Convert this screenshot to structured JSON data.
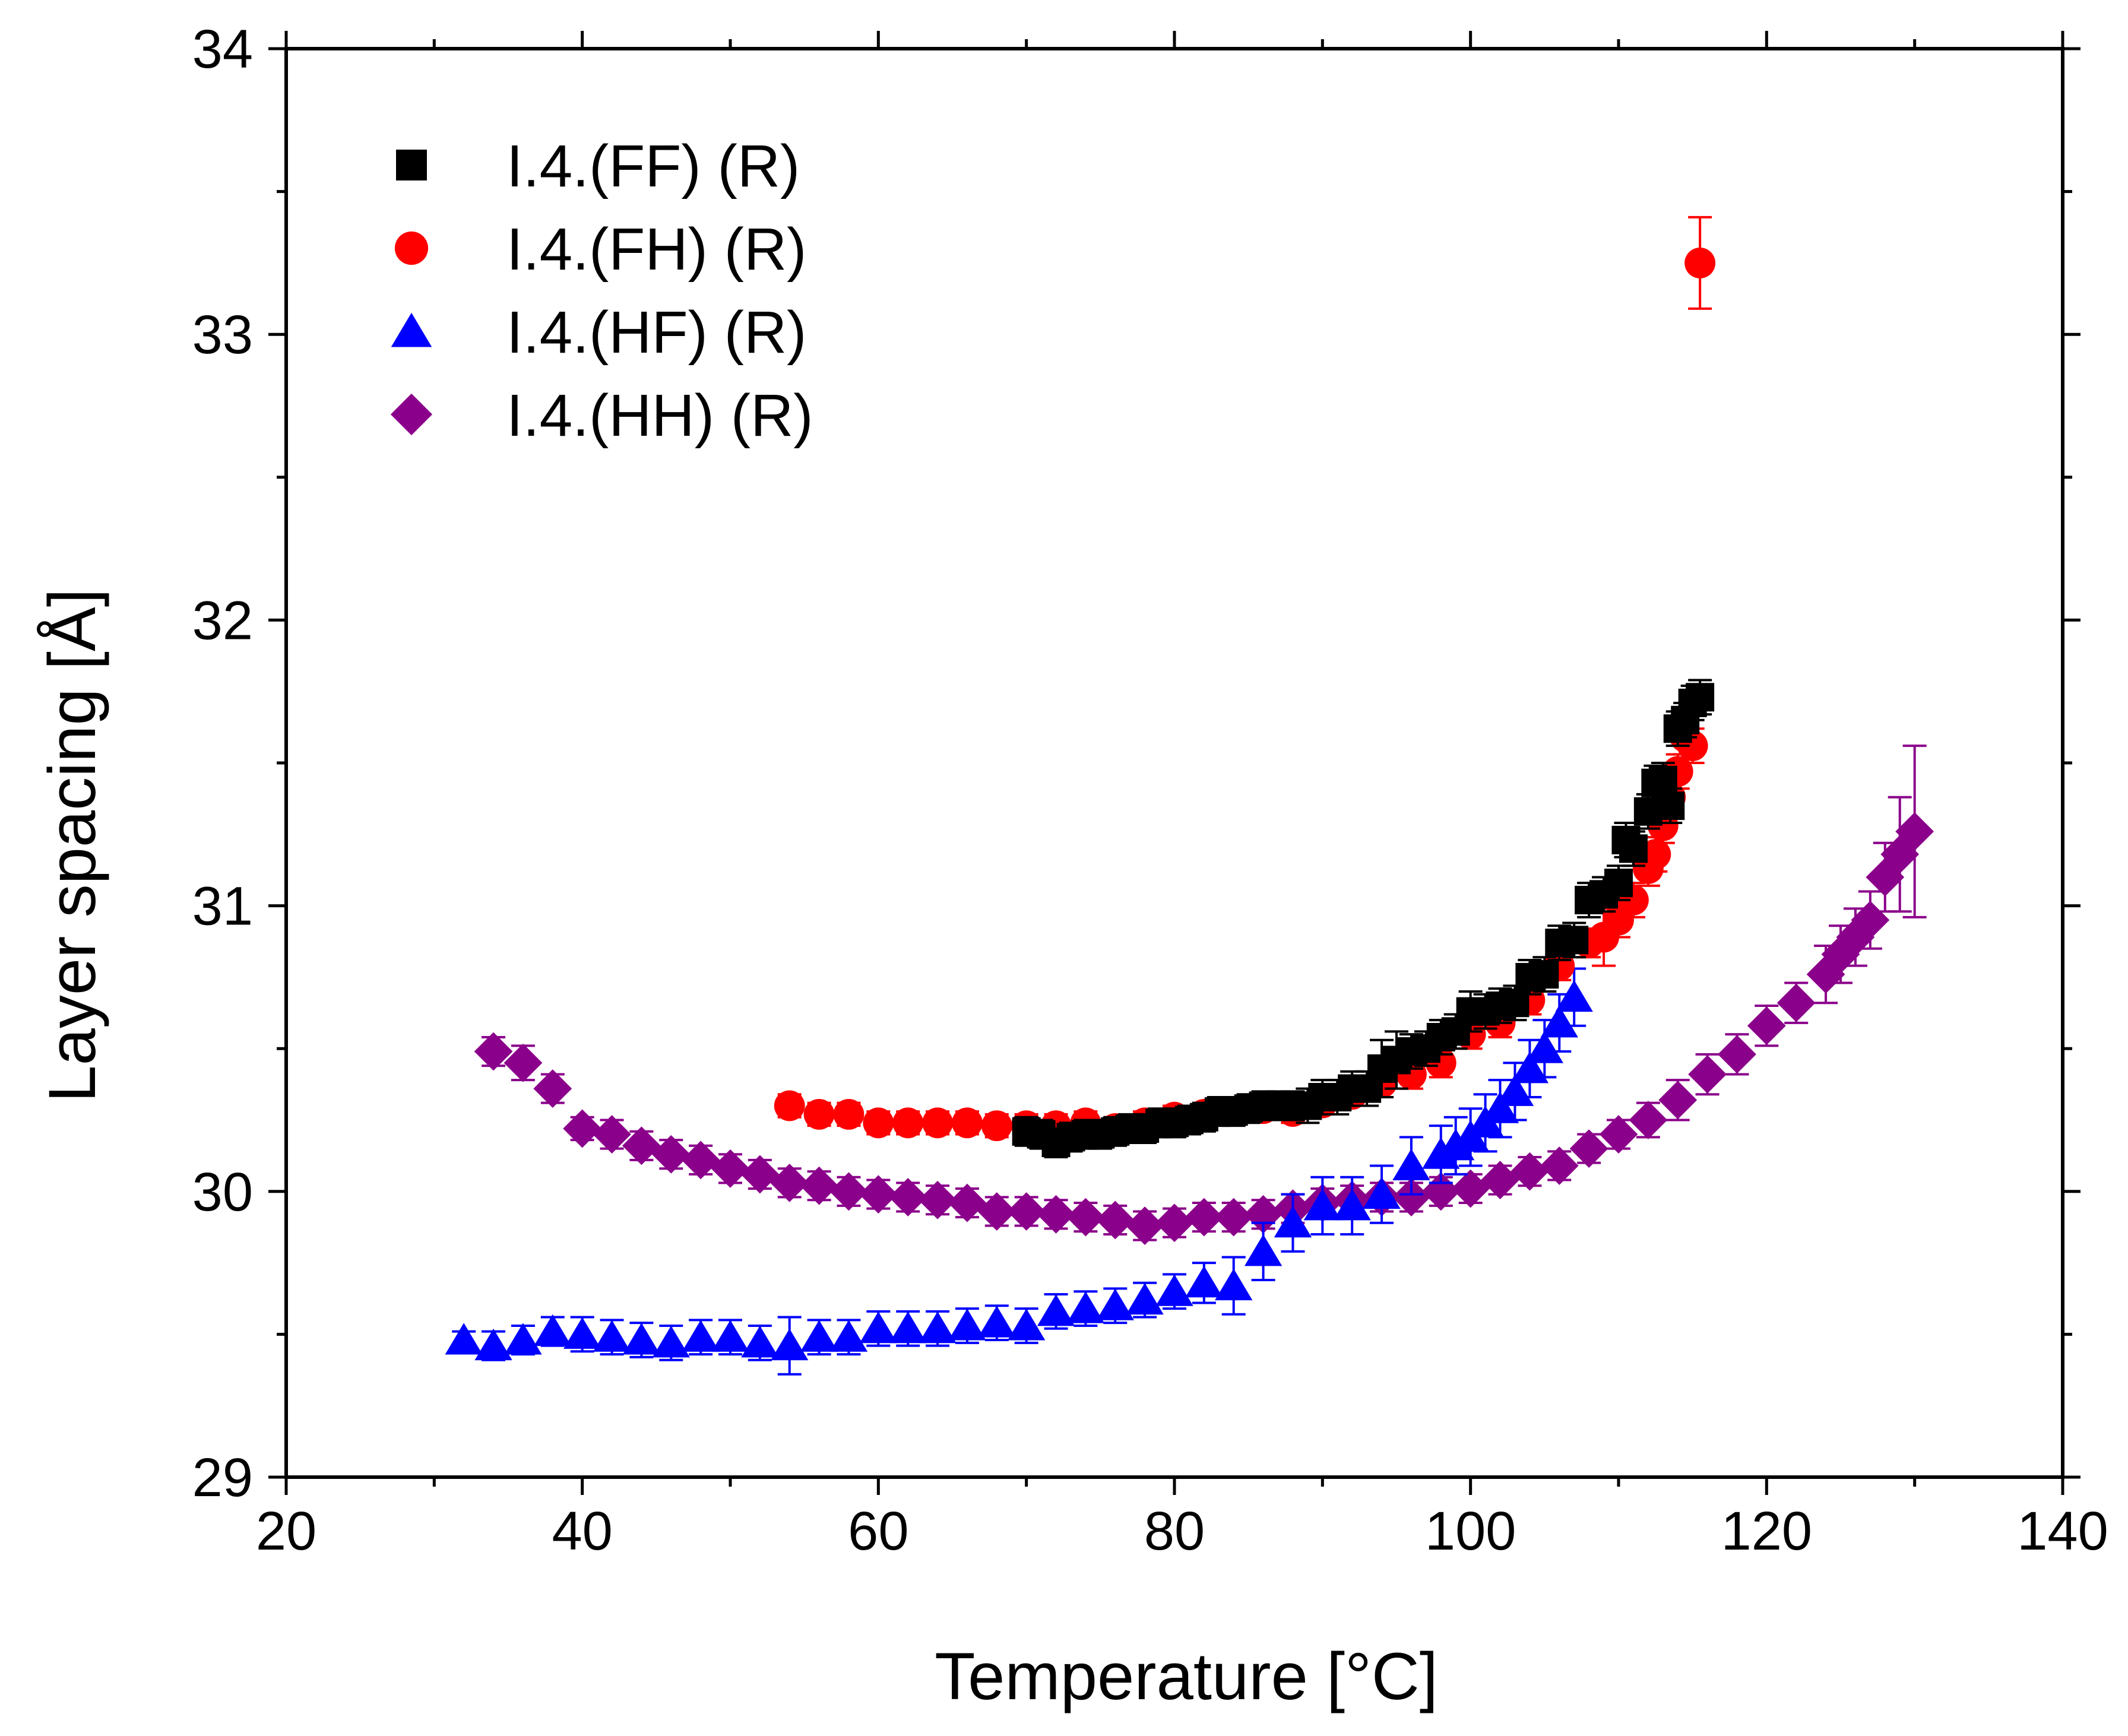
{
  "chart_data": {
    "type": "scatter",
    "title": "",
    "xlabel": "Temperature [°C]",
    "ylabel": "Layer spacing [Å]",
    "xlim": [
      20,
      140
    ],
    "ylim": [
      29,
      34
    ],
    "xticks": [
      20,
      40,
      60,
      80,
      100,
      120,
      140
    ],
    "yticks": [
      29,
      30,
      31,
      32,
      33,
      34
    ],
    "grid": false,
    "legend_position": "top-left",
    "series": [
      {
        "name": "I.4.(FF) (R)",
        "color": "#000000",
        "marker": "square",
        "points": [
          [
            70,
            30.21,
            0.05
          ],
          [
            71,
            30.2,
            0.05
          ],
          [
            72,
            30.17,
            0.05
          ],
          [
            73,
            30.19,
            0.05
          ],
          [
            74,
            30.2,
            0.05
          ],
          [
            75,
            30.2,
            0.05
          ],
          [
            76,
            30.21,
            0.05
          ],
          [
            77,
            30.22,
            0.05
          ],
          [
            78,
            30.22,
            0.05
          ],
          [
            79,
            30.24,
            0.05
          ],
          [
            80,
            30.24,
            0.05
          ],
          [
            81,
            30.25,
            0.05
          ],
          [
            82,
            30.26,
            0.05
          ],
          [
            83,
            30.28,
            0.05
          ],
          [
            84,
            30.28,
            0.05
          ],
          [
            85,
            30.29,
            0.05
          ],
          [
            86,
            30.3,
            0.05
          ],
          [
            87,
            30.3,
            0.05
          ],
          [
            88,
            30.3,
            0.05
          ],
          [
            89,
            30.3,
            0.06
          ],
          [
            90,
            30.33,
            0.06
          ],
          [
            91,
            30.33,
            0.06
          ],
          [
            92,
            30.36,
            0.06
          ],
          [
            93,
            30.36,
            0.06
          ],
          [
            94,
            30.43,
            0.1
          ],
          [
            95,
            30.46,
            0.1
          ],
          [
            96,
            30.49,
            0.06
          ],
          [
            97,
            30.5,
            0.06
          ],
          [
            98,
            30.54,
            0.06
          ],
          [
            99,
            30.56,
            0.06
          ],
          [
            100,
            30.63,
            0.07
          ],
          [
            101,
            30.63,
            0.06
          ],
          [
            102,
            30.65,
            0.06
          ],
          [
            103,
            30.66,
            0.06
          ],
          [
            104,
            30.75,
            0.06
          ],
          [
            105,
            30.76,
            0.06
          ],
          [
            106,
            30.87,
            0.06
          ],
          [
            107,
            30.88,
            0.06
          ],
          [
            108,
            31.02,
            0.06
          ],
          [
            109,
            31.04,
            0.06
          ],
          [
            110,
            31.08,
            0.06
          ],
          [
            110.5,
            31.23,
            0.06
          ],
          [
            111,
            31.2,
            0.06
          ],
          [
            112,
            31.33,
            0.06
          ],
          [
            112.5,
            31.43,
            0.06
          ],
          [
            113,
            31.44,
            0.06
          ],
          [
            113.5,
            31.35,
            0.06
          ],
          [
            114,
            31.62,
            0.06
          ],
          [
            114.5,
            31.65,
            0.06
          ],
          [
            115,
            31.71,
            0.06
          ],
          [
            115.5,
            31.73,
            0.06
          ]
        ]
      },
      {
        "name": "I.4.(FH) (R)",
        "color": "#ff0000",
        "marker": "circle",
        "points": [
          [
            54,
            30.3,
            0.04
          ],
          [
            56,
            30.27,
            0.04
          ],
          [
            58,
            30.27,
            0.04
          ],
          [
            60,
            30.24,
            0.04
          ],
          [
            62,
            30.24,
            0.04
          ],
          [
            64,
            30.24,
            0.04
          ],
          [
            66,
            30.24,
            0.04
          ],
          [
            68,
            30.23,
            0.04
          ],
          [
            70,
            30.23,
            0.04
          ],
          [
            72,
            30.23,
            0.04
          ],
          [
            74,
            30.24,
            0.04
          ],
          [
            76,
            30.22,
            0.04
          ],
          [
            78,
            30.24,
            0.04
          ],
          [
            80,
            30.26,
            0.04
          ],
          [
            82,
            30.27,
            0.04
          ],
          [
            84,
            30.28,
            0.04
          ],
          [
            86,
            30.29,
            0.04
          ],
          [
            88,
            30.28,
            0.04
          ],
          [
            90,
            30.31,
            0.04
          ],
          [
            92,
            30.34,
            0.04
          ],
          [
            94,
            30.38,
            0.05
          ],
          [
            96,
            30.41,
            0.05
          ],
          [
            98,
            30.45,
            0.05
          ],
          [
            100,
            30.55,
            0.05
          ],
          [
            102,
            30.59,
            0.05
          ],
          [
            104,
            30.67,
            0.05
          ],
          [
            106,
            30.79,
            0.05
          ],
          [
            108,
            30.87,
            0.05
          ],
          [
            109,
            30.89,
            0.1
          ],
          [
            110,
            30.95,
            0.06
          ],
          [
            111,
            31.02,
            0.06
          ],
          [
            112,
            31.13,
            0.06
          ],
          [
            112.5,
            31.18,
            0.06
          ],
          [
            113,
            31.28,
            0.06
          ],
          [
            113.5,
            31.38,
            0.06
          ],
          [
            114,
            31.47,
            0.06
          ],
          [
            114.5,
            31.59,
            0.06
          ],
          [
            115,
            31.56,
            0.06
          ],
          [
            115.5,
            33.25,
            0.16
          ]
        ]
      },
      {
        "name": "I.4.(HF) (R)",
        "color": "#0000ff",
        "marker": "triangle",
        "points": [
          [
            32,
            29.48,
            0.03
          ],
          [
            34,
            29.46,
            0.05
          ],
          [
            36,
            29.48,
            0.05
          ],
          [
            38,
            29.51,
            0.05
          ],
          [
            40,
            29.5,
            0.06
          ],
          [
            42,
            29.49,
            0.06
          ],
          [
            44,
            29.48,
            0.06
          ],
          [
            46,
            29.47,
            0.06
          ],
          [
            48,
            29.49,
            0.06
          ],
          [
            50,
            29.49,
            0.06
          ],
          [
            52,
            29.47,
            0.06
          ],
          [
            54,
            29.46,
            0.1
          ],
          [
            56,
            29.49,
            0.06
          ],
          [
            58,
            29.49,
            0.06
          ],
          [
            60,
            29.52,
            0.06
          ],
          [
            62,
            29.52,
            0.06
          ],
          [
            64,
            29.52,
            0.06
          ],
          [
            66,
            29.53,
            0.06
          ],
          [
            68,
            29.54,
            0.06
          ],
          [
            70,
            29.53,
            0.06
          ],
          [
            72,
            29.58,
            0.06
          ],
          [
            74,
            29.59,
            0.06
          ],
          [
            76,
            29.6,
            0.06
          ],
          [
            78,
            29.62,
            0.06
          ],
          [
            80,
            29.65,
            0.06
          ],
          [
            82,
            29.68,
            0.07
          ],
          [
            84,
            29.67,
            0.1
          ],
          [
            86,
            29.79,
            0.1
          ],
          [
            88,
            29.89,
            0.1
          ],
          [
            90,
            29.95,
            0.1
          ],
          [
            92,
            29.95,
            0.1
          ],
          [
            94,
            29.99,
            0.1
          ],
          [
            96,
            30.09,
            0.1
          ],
          [
            98,
            30.13,
            0.1
          ],
          [
            99,
            30.16,
            0.1
          ],
          [
            100,
            30.19,
            0.1
          ],
          [
            101,
            30.24,
            0.1
          ],
          [
            102,
            30.29,
            0.1
          ],
          [
            103,
            30.35,
            0.1
          ],
          [
            104,
            30.43,
            0.1
          ],
          [
            105,
            30.5,
            0.1
          ],
          [
            106,
            30.59,
            0.1
          ],
          [
            107,
            30.68,
            0.1
          ]
        ]
      },
      {
        "name": "I.4.(HH) (R)",
        "color": "#8b008b",
        "marker": "diamond",
        "points": [
          [
            34,
            30.49,
            0.05
          ],
          [
            36,
            30.45,
            0.06
          ],
          [
            38,
            30.36,
            0.05
          ],
          [
            40,
            30.22,
            0.04
          ],
          [
            42,
            30.2,
            0.05
          ],
          [
            44,
            30.16,
            0.05
          ],
          [
            46,
            30.13,
            0.05
          ],
          [
            48,
            30.11,
            0.05
          ],
          [
            50,
            30.08,
            0.05
          ],
          [
            52,
            30.06,
            0.05
          ],
          [
            54,
            30.03,
            0.05
          ],
          [
            56,
            30.02,
            0.05
          ],
          [
            58,
            30.0,
            0.05
          ],
          [
            60,
            29.99,
            0.05
          ],
          [
            62,
            29.98,
            0.05
          ],
          [
            64,
            29.97,
            0.05
          ],
          [
            66,
            29.96,
            0.05
          ],
          [
            68,
            29.93,
            0.05
          ],
          [
            70,
            29.93,
            0.05
          ],
          [
            72,
            29.92,
            0.05
          ],
          [
            74,
            29.91,
            0.05
          ],
          [
            76,
            29.9,
            0.05
          ],
          [
            78,
            29.88,
            0.05
          ],
          [
            80,
            29.89,
            0.05
          ],
          [
            82,
            29.91,
            0.05
          ],
          [
            84,
            29.91,
            0.05
          ],
          [
            86,
            29.92,
            0.05
          ],
          [
            88,
            29.94,
            0.05
          ],
          [
            90,
            29.96,
            0.05
          ],
          [
            92,
            29.97,
            0.05
          ],
          [
            94,
            29.98,
            0.05
          ],
          [
            96,
            29.98,
            0.05
          ],
          [
            98,
            30.0,
            0.05
          ],
          [
            100,
            30.01,
            0.05
          ],
          [
            102,
            30.04,
            0.05
          ],
          [
            104,
            30.07,
            0.05
          ],
          [
            106,
            30.09,
            0.05
          ],
          [
            108,
            30.15,
            0.05
          ],
          [
            110,
            30.2,
            0.05
          ],
          [
            112,
            30.25,
            0.06
          ],
          [
            114,
            30.32,
            0.07
          ],
          [
            116,
            30.41,
            0.07
          ],
          [
            118,
            30.48,
            0.07
          ],
          [
            120,
            30.58,
            0.07
          ],
          [
            122,
            30.66,
            0.07
          ],
          [
            124,
            30.76,
            0.1
          ],
          [
            125,
            30.83,
            0.1
          ],
          [
            126,
            30.89,
            0.1
          ],
          [
            127,
            30.95,
            0.1
          ],
          [
            128,
            31.1,
            0.12
          ],
          [
            129,
            31.18,
            0.2
          ],
          [
            130,
            31.26,
            0.3
          ]
        ]
      }
    ]
  }
}
